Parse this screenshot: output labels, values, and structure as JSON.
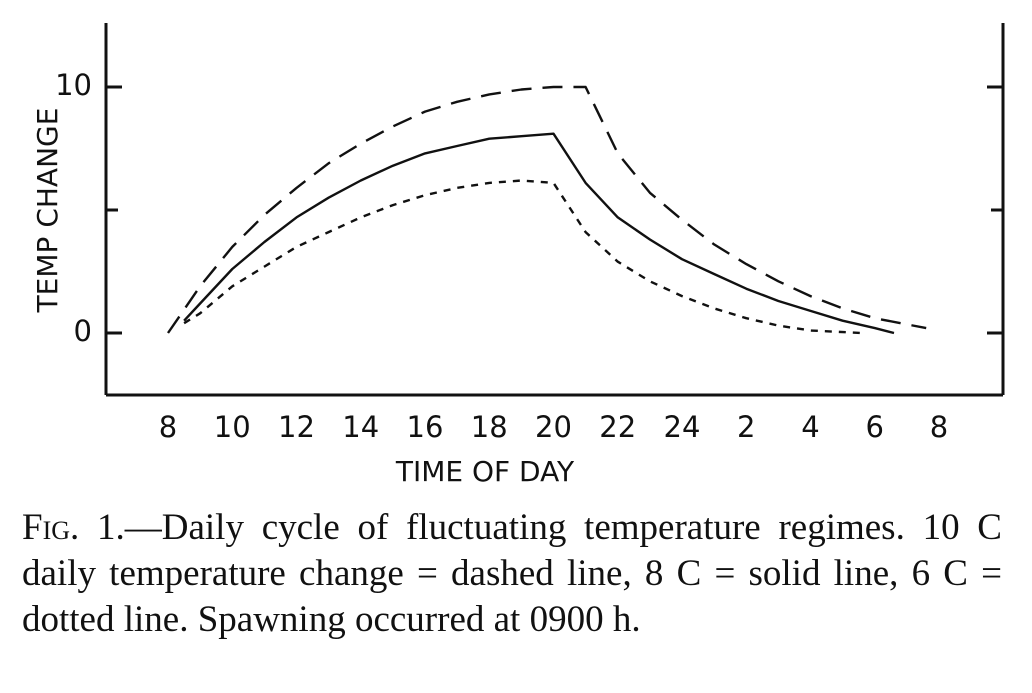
{
  "chart_data": {
    "type": "line",
    "xlabel": "TIME OF DAY",
    "ylabel": "TEMP CHANGE",
    "x_tick_labels": [
      "8",
      "10",
      "12",
      "14",
      "16",
      "18",
      "20",
      "22",
      "24",
      "2",
      "4",
      "6",
      "8"
    ],
    "y_tick_labels": [
      "0",
      "10"
    ],
    "ylim": [
      -2.5,
      12.5
    ],
    "grid": false,
    "series": [
      {
        "style": "dashed",
        "x": [
          8,
          9,
          10,
          11,
          12,
          13,
          14,
          15,
          16,
          17,
          18,
          19,
          20,
          21,
          22,
          23,
          24,
          25,
          26,
          27,
          28,
          29,
          30,
          31.6
        ],
        "y": [
          0,
          1.9,
          3.5,
          4.8,
          5.9,
          6.9,
          7.7,
          8.4,
          9.0,
          9.4,
          9.7,
          9.9,
          10.0,
          10.0,
          7.3,
          5.7,
          4.6,
          3.6,
          2.8,
          2.1,
          1.5,
          1.0,
          0.6,
          0.2
        ]
      },
      {
        "style": "solid",
        "x": [
          8.5,
          9,
          10,
          11,
          12,
          13,
          14,
          15,
          16,
          17,
          18,
          19,
          20,
          21,
          22,
          23,
          24,
          25,
          26,
          27,
          28,
          29,
          30,
          30.6
        ],
        "y": [
          0.5,
          1.2,
          2.6,
          3.7,
          4.7,
          5.5,
          6.2,
          6.8,
          7.3,
          7.6,
          7.9,
          8.0,
          8.1,
          6.1,
          4.7,
          3.8,
          3.0,
          2.4,
          1.8,
          1.3,
          0.9,
          0.5,
          0.2,
          0
        ]
      },
      {
        "style": "dotted",
        "x": [
          8.5,
          9,
          10,
          11,
          12,
          13,
          14,
          15,
          16,
          17,
          18,
          19,
          20,
          21,
          22,
          23,
          24,
          25,
          26,
          27,
          28,
          29.6
        ],
        "y": [
          0.4,
          0.8,
          1.9,
          2.7,
          3.5,
          4.1,
          4.7,
          5.2,
          5.6,
          5.9,
          6.1,
          6.2,
          6.1,
          4.1,
          2.9,
          2.1,
          1.5,
          1.0,
          0.6,
          0.3,
          0.1,
          0
        ]
      }
    ]
  },
  "caption": {
    "fig_label": "Fig. 1.",
    "text": "—Daily cycle of fluctuating temperature regimes. 10 C daily temperature change = dashed line, 8 C = solid line, 6 C = dotted line. Spawning occurred at 0900 h."
  }
}
